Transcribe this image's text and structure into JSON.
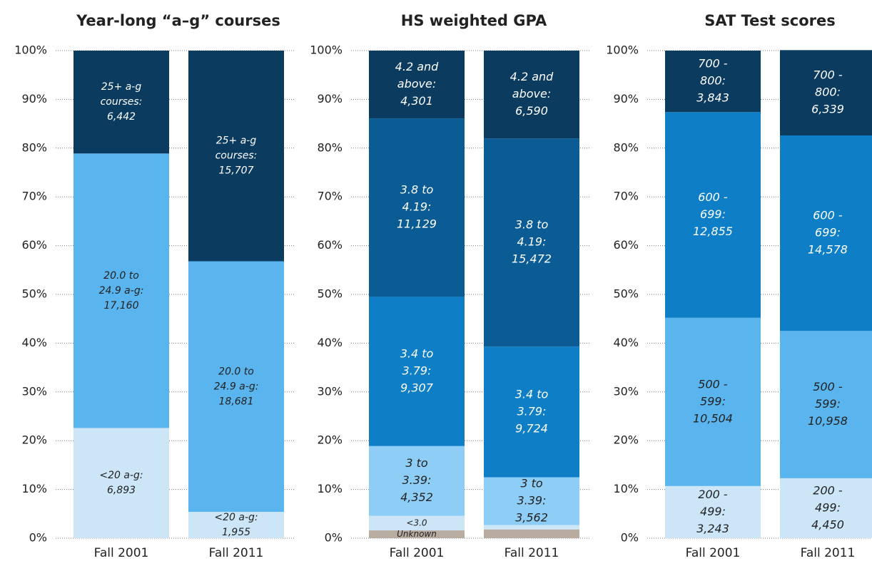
{
  "chart_data": [
    {
      "type": "stacked_bar",
      "title": "Year-long “a–g” courses",
      "categories": [
        "Fall 2001",
        "Fall 2011"
      ],
      "ylim": [
        0,
        100
      ],
      "yticks": [
        {
          "value": 0,
          "label": "0%"
        },
        {
          "value": 10,
          "label": "10%"
        },
        {
          "value": 20,
          "label": "20%"
        },
        {
          "value": 30,
          "label": "30%"
        },
        {
          "value": 40,
          "label": "40%"
        },
        {
          "value": 50,
          "label": "50%"
        },
        {
          "value": 60,
          "label": "60%"
        },
        {
          "value": 70,
          "label": "70%"
        },
        {
          "value": 80,
          "label": "80%"
        },
        {
          "value": 90,
          "label": "90%"
        },
        {
          "value": 100,
          "label": "100%"
        }
      ],
      "grid": true,
      "series": [
        {
          "color": "#cce6f8",
          "values": [
            22.6,
            5.4
          ],
          "labels": [
            [
              "<20 a-g:",
              "6,893"
            ],
            [
              "<20 a-g:",
              "1,955"
            ]
          ]
        },
        {
          "color": "#5ab4ee",
          "values": [
            56.3,
            51.4
          ],
          "labels": [
            [
              "20.0 to",
              "24.9 a-g:",
              "17,160"
            ],
            [
              "20.0 to",
              "24.9 a-g:",
              "18,681"
            ]
          ]
        },
        {
          "color": "#0b3b5e",
          "values": [
            21.1,
            43.2
          ],
          "labels": [
            [
              "25+ a-g",
              "courses:",
              "6,442"
            ],
            [
              "25+ a-g",
              "courses:",
              "15,707"
            ]
          ]
        }
      ]
    },
    {
      "type": "stacked_bar",
      "title": "HS weighted GPA",
      "categories": [
        "Fall 2001",
        "Fall 2011"
      ],
      "ylim": [
        0,
        100
      ],
      "yticks": [
        {
          "value": 0,
          "label": "0%"
        },
        {
          "value": 10,
          "label": "10%"
        },
        {
          "value": 20,
          "label": "20%"
        },
        {
          "value": 30,
          "label": "30%"
        },
        {
          "value": 40,
          "label": "40%"
        },
        {
          "value": 50,
          "label": "50%"
        },
        {
          "value": 60,
          "label": "60%"
        },
        {
          "value": 70,
          "label": "70%"
        },
        {
          "value": 80,
          "label": "80%"
        },
        {
          "value": 90,
          "label": "90%"
        },
        {
          "value": 100,
          "label": "100%"
        }
      ],
      "grid": true,
      "series": [
        {
          "color": "#b8aca0",
          "values": [
            1.6,
            1.8
          ],
          "labels": [
            [
              "Unknown"
            ],
            null
          ]
        },
        {
          "color": "#cce6f8",
          "values": [
            3.0,
            0.9
          ],
          "labels": [
            [
              "<3.0"
            ],
            null
          ]
        },
        {
          "color": "#8ecdf5",
          "values": [
            14.3,
            9.8
          ],
          "labels": [
            [
              "3 to",
              "3.39:",
              "4,352"
            ],
            [
              "3 to",
              "3.39:",
              "3,562"
            ]
          ]
        },
        {
          "color": "#0e7ec6",
          "values": [
            30.6,
            26.8
          ],
          "labels": [
            [
              "3.4 to",
              "3.79:",
              "9,307"
            ],
            [
              "3.4 to",
              "3.79:",
              "9,724"
            ]
          ]
        },
        {
          "color": "#0b5c94",
          "values": [
            36.6,
            42.7
          ],
          "labels": [
            [
              "3.8 to",
              "4.19:",
              "11,129"
            ],
            [
              "3.8 to",
              "4.19:",
              "15,472"
            ]
          ]
        },
        {
          "color": "#0b3b5e",
          "values": [
            13.9,
            18.0
          ],
          "labels": [
            [
              "4.2 and",
              "above:",
              "4,301"
            ],
            [
              "4.2 and",
              "above:",
              "6,590"
            ]
          ]
        }
      ]
    },
    {
      "type": "stacked_bar",
      "title": "SAT Test scores",
      "categories": [
        "Fall 2001",
        "Fall 2011"
      ],
      "ylim": [
        0,
        100
      ],
      "yticks": [
        {
          "value": 0,
          "label": "0%"
        },
        {
          "value": 10,
          "label": "10%"
        },
        {
          "value": 20,
          "label": "20%"
        },
        {
          "value": 30,
          "label": "30%"
        },
        {
          "value": 40,
          "label": "40%"
        },
        {
          "value": 50,
          "label": "50%"
        },
        {
          "value": 60,
          "label": "60%"
        },
        {
          "value": 70,
          "label": "70%"
        },
        {
          "value": 80,
          "label": "80%"
        },
        {
          "value": 90,
          "label": "90%"
        },
        {
          "value": 100,
          "label": "100%"
        }
      ],
      "grid": true,
      "series": [
        {
          "color": "#cce6f8",
          "values": [
            10.7,
            12.3
          ],
          "labels": [
            [
              "200 -",
              "499:",
              "3,243"
            ],
            [
              "200 -",
              "499:",
              "4,450"
            ]
          ]
        },
        {
          "color": "#5ab4ee",
          "values": [
            34.5,
            30.2
          ],
          "labels": [
            [
              "500 -",
              "599:",
              "10,504"
            ],
            [
              "500 -",
              "599:",
              "10,958"
            ]
          ]
        },
        {
          "color": "#0e7ec6",
          "values": [
            42.2,
            40.1
          ],
          "labels": [
            [
              "600 -",
              "699:",
              "12,855"
            ],
            [
              "600 -",
              "699:",
              "14,578"
            ]
          ]
        },
        {
          "color": "#0b3b5e",
          "values": [
            12.6,
            17.5
          ],
          "labels": [
            [
              "700 -",
              "800:",
              "3,843"
            ],
            [
              "700 -",
              "800:",
              "6,339"
            ]
          ]
        }
      ]
    }
  ]
}
